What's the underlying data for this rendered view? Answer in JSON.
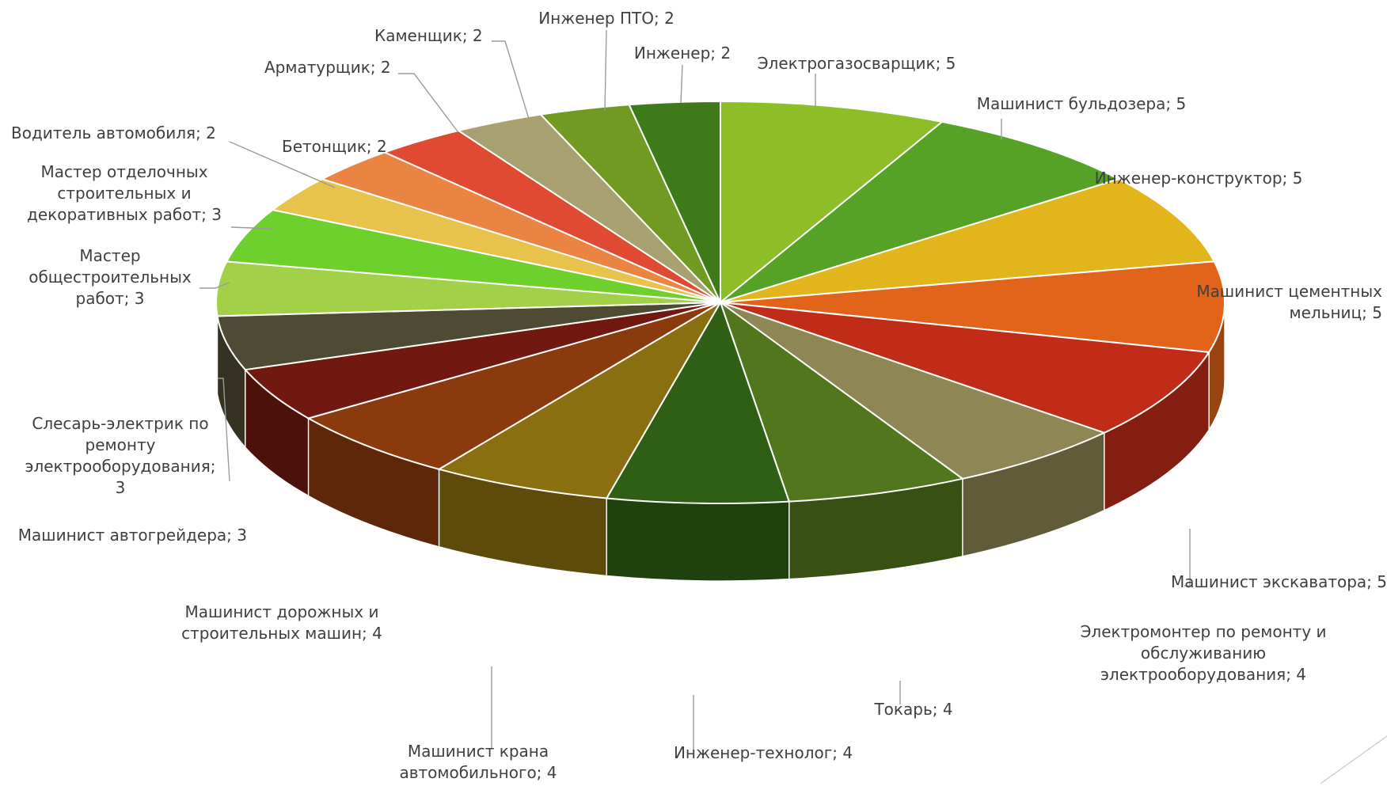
{
  "chart_data": {
    "type": "pie",
    "title": "",
    "style": "3d",
    "slices": [
      {
        "label": "Электрогазосварщик",
        "value": 5,
        "label_text": "Электрогазосварщик; 5",
        "color": "#8dbe28"
      },
      {
        "label": "Машинист бульдозера",
        "value": 5,
        "label_text": "Машинист бульдозера; 5",
        "color": "#55a227"
      },
      {
        "label": "Инженер-конструктор",
        "value": 5,
        "label_text": "Инженер-конструктор; 5",
        "color": "#e3b51c"
      },
      {
        "label": "Машинист цементных мельниц",
        "value": 5,
        "label_text": "Машинист цементных мельниц; 5",
        "color": "#e2641a"
      },
      {
        "label": "Машинист экскаватора",
        "value": 5,
        "label_text": "Машинист экскаватора; 5",
        "color": "#c12c18"
      },
      {
        "label": "Электромонтер по ремонту и обслуживанию электрооборудования",
        "value": 4,
        "label_text": "Электромонтер по ремонту и обслуживанию электрооборудования; 4",
        "color": "#8f8655"
      },
      {
        "label": "Токарь",
        "value": 4,
        "label_text": "Токарь; 4",
        "color": "#52761d"
      },
      {
        "label": "Инженер-технолог",
        "value": 4,
        "label_text": "Инженер-технолог; 4",
        "color": "#2e5f14"
      },
      {
        "label": "Машинист крана автомобильного",
        "value": 4,
        "label_text": "Машинист крана автомобильного; 4",
        "color": "#8a6f11"
      },
      {
        "label": "Машинист дорожных и строительных машин",
        "value": 4,
        "label_text": "Машинист дорожных и строительных машин; 4",
        "color": "#8b3a0d"
      },
      {
        "label": "Машинист автогрейдера",
        "value": 3,
        "label_text": "Машинист автогрейдера; 3",
        "color": "#711911"
      },
      {
        "label": "Слесарь-электрик по ремонту электрооборудования",
        "value": 3,
        "label_text": "Слесарь-электрик по ремонту электрооборудования; 3",
        "color": "#4f4a33"
      },
      {
        "label": "Мастер общестроительных работ",
        "value": 3,
        "label_text": "Мастер общестроительных работ; 3",
        "color": "#a3d049"
      },
      {
        "label": "Мастер отделочных строительных и декоративных работ",
        "value": 3,
        "label_text": "Мастер отделочных строительных и декоративных работ; 3",
        "color": "#6dd02c"
      },
      {
        "label": "Водитель автомобиля",
        "value": 2,
        "label_text": "Водитель автомобиля; 2",
        "color": "#e7c34b"
      },
      {
        "label": "Бетонщик",
        "value": 2,
        "label_text": "Бетонщик; 2",
        "color": "#e98443"
      },
      {
        "label": "Арматурщик",
        "value": 2,
        "label_text": "Арматурщик; 2",
        "color": "#e14a32"
      },
      {
        "label": "Каменщик",
        "value": 2,
        "label_text": "Каменщик; 2",
        "color": "#a8a070"
      },
      {
        "label": "Инженер ПТО",
        "value": 2,
        "label_text": "Инженер ПТО; 2",
        "color": "#719a22"
      },
      {
        "label": "Инженер",
        "value": 2,
        "label_text": "Инженер; 2",
        "color": "#3f7a1a"
      }
    ]
  }
}
